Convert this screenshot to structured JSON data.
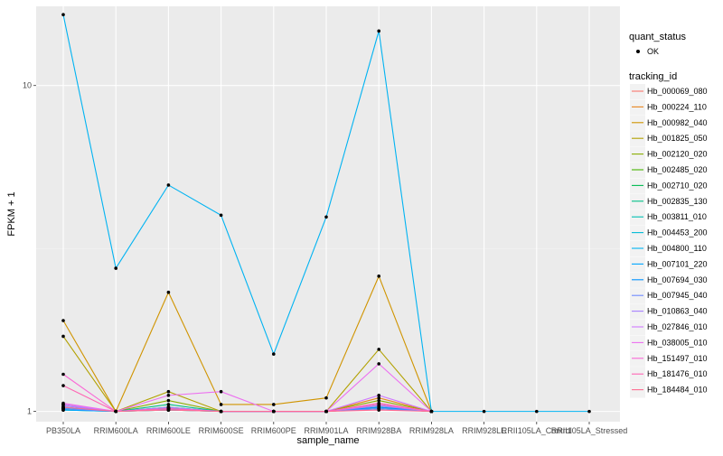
{
  "chart_data": {
    "type": "line",
    "xlabel": "sample_name",
    "ylabel": "FPKM + 1",
    "y_scale": "log10",
    "ylim": [
      0.93,
      17.5
    ],
    "y_ticks": [
      1,
      10
    ],
    "y_tick_labels": [
      "1",
      "10"
    ],
    "categories": [
      "PB350LA",
      "RRIM600LA",
      "RRIM600LE",
      "RRIM600SE",
      "RRIM600PE",
      "RRIM901LA",
      "RRIM928BA",
      "RRIM928LA",
      "RRIM928LE",
      "RRII105LA_Control",
      "RRII105LA_Stressed"
    ],
    "grid": true,
    "legend_position": "right",
    "shape_legend": {
      "title": "quant_status",
      "items": [
        {
          "label": "OK",
          "symbol": "dot"
        }
      ]
    },
    "color_legend": {
      "title": "tracking_id"
    },
    "series": [
      {
        "name": "Hb_000069_080",
        "color": "#F8766D",
        "values": [
          1.03,
          1.0,
          1.02,
          1.0,
          1.0,
          1.0,
          1.02,
          1.0,
          null,
          null,
          null
        ]
      },
      {
        "name": "Hb_000224_110",
        "color": "#E7851E",
        "values": [
          1.05,
          1.0,
          1.03,
          1.0,
          1.0,
          1.0,
          1.1,
          1.0,
          null,
          null,
          null
        ]
      },
      {
        "name": "Hb_000982_040",
        "color": "#D09400",
        "values": [
          1.9,
          1.0,
          2.32,
          1.05,
          1.05,
          1.1,
          2.6,
          1.0,
          null,
          null,
          null
        ]
      },
      {
        "name": "Hb_001825_050",
        "color": "#B2A100",
        "values": [
          1.7,
          1.0,
          1.15,
          1.0,
          1.0,
          1.0,
          1.55,
          1.0,
          null,
          null,
          null
        ]
      },
      {
        "name": "Hb_002120_020",
        "color": "#89AC00",
        "values": [
          1.02,
          1.0,
          1.08,
          1.0,
          1.0,
          1.0,
          1.08,
          1.0,
          null,
          null,
          null
        ]
      },
      {
        "name": "Hb_002485_020",
        "color": "#45B500",
        "values": [
          1.02,
          1.0,
          1.01,
          1.0,
          1.0,
          1.0,
          1.03,
          1.0,
          null,
          null,
          null
        ]
      },
      {
        "name": "Hb_002710_020",
        "color": "#00BC51",
        "values": [
          1.01,
          1.0,
          1.02,
          1.0,
          1.0,
          1.0,
          1.02,
          1.0,
          null,
          null,
          null
        ]
      },
      {
        "name": "Hb_002835_130",
        "color": "#00C087",
        "values": [
          1.02,
          1.0,
          1.05,
          1.0,
          1.0,
          1.0,
          1.05,
          1.0,
          null,
          null,
          null
        ]
      },
      {
        "name": "Hb_003811_010",
        "color": "#00C0B2",
        "values": [
          1.03,
          1.0,
          1.03,
          1.0,
          1.0,
          1.0,
          1.04,
          1.0,
          null,
          null,
          null
        ]
      },
      {
        "name": "Hb_004453_200",
        "color": "#00BCD6",
        "values": [
          1.02,
          1.0,
          1.02,
          1.0,
          1.0,
          1.0,
          1.03,
          1.0,
          null,
          null,
          null
        ]
      },
      {
        "name": "Hb_004800_110",
        "color": "#00B3F2",
        "values": [
          16.5,
          2.75,
          4.95,
          4.0,
          1.5,
          3.95,
          14.7,
          1.0,
          1.0,
          1.0,
          1.0
        ]
      },
      {
        "name": "Hb_007101_220",
        "color": "#00A6FF",
        "values": [
          1.01,
          1.0,
          1.01,
          1.0,
          1.0,
          1.0,
          1.02,
          1.0,
          null,
          null,
          null
        ]
      },
      {
        "name": "Hb_007694_030",
        "color": "#0092FF",
        "values": [
          1.02,
          1.0,
          1.02,
          1.0,
          1.0,
          1.0,
          1.03,
          1.0,
          null,
          null,
          null
        ]
      },
      {
        "name": "Hb_007945_040",
        "color": "#6F8BFF",
        "values": [
          1.02,
          1.0,
          1.02,
          1.0,
          1.0,
          1.0,
          1.02,
          1.0,
          null,
          null,
          null
        ]
      },
      {
        "name": "Hb_010863_040",
        "color": "#A680FF",
        "values": [
          1.04,
          1.0,
          1.03,
          1.0,
          1.0,
          1.0,
          1.04,
          1.0,
          null,
          null,
          null
        ]
      },
      {
        "name": "Hb_027846_010",
        "color": "#CF78FF",
        "values": [
          1.05,
          1.0,
          1.02,
          1.0,
          1.0,
          1.0,
          1.12,
          1.0,
          null,
          null,
          null
        ]
      },
      {
        "name": "Hb_038005_010",
        "color": "#EC6FF0",
        "values": [
          1.06,
          1.0,
          1.12,
          1.15,
          1.0,
          1.0,
          1.4,
          1.0,
          null,
          null,
          null
        ]
      },
      {
        "name": "Hb_151497_010",
        "color": "#FA68D6",
        "values": [
          1.3,
          1.0,
          1.02,
          1.0,
          1.0,
          1.0,
          1.05,
          1.0,
          null,
          null,
          null
        ]
      },
      {
        "name": "Hb_181476_010",
        "color": "#FF66B4",
        "values": [
          1.2,
          1.0,
          1.02,
          1.0,
          1.0,
          1.0,
          1.06,
          1.0,
          null,
          null,
          null
        ]
      },
      {
        "name": "Hb_184484_010",
        "color": "#FF6C91",
        "values": [
          1.03,
          1.0,
          1.01,
          1.0,
          1.0,
          1.0,
          1.01,
          1.0,
          null,
          null,
          null
        ]
      }
    ]
  }
}
